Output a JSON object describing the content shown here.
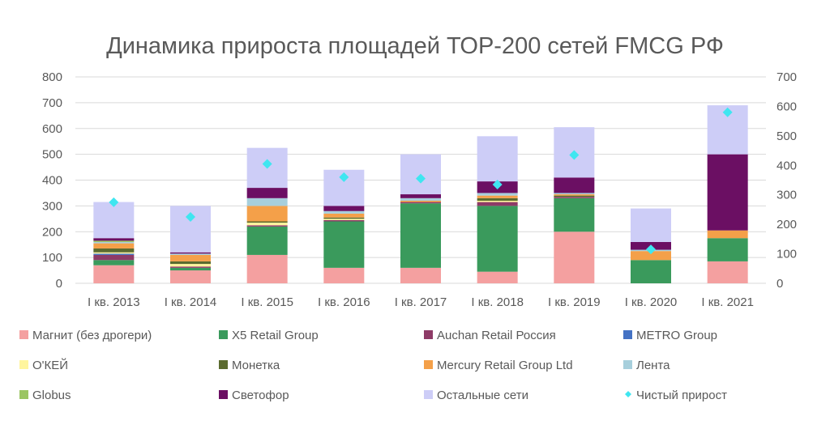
{
  "chart_data": {
    "type": "bar",
    "stacked": true,
    "title": "Динамика прироста площадей ТОР-200 сетей FMCG РФ",
    "categories": [
      "I кв. 2013",
      "I кв. 2014",
      "I кв. 2015",
      "I кв. 2016",
      "I кв. 2017",
      "I кв. 2018",
      "I кв. 2019",
      "I кв. 2020",
      "I кв. 2021"
    ],
    "ylim": [
      0,
      800
    ],
    "yticks": [
      "0",
      "100",
      "200",
      "300",
      "400",
      "500",
      "600",
      "700",
      "800"
    ],
    "y2lim": [
      0,
      700
    ],
    "y2ticks": [
      "0",
      "100",
      "200",
      "300",
      "400",
      "500",
      "600",
      "700"
    ],
    "grid": true,
    "legend_position": "bottom",
    "series": [
      {
        "name": "Магнит (без дрогери)",
        "color": "#f4a0a0",
        "values": [
          70,
          50,
          110,
          60,
          60,
          45,
          200,
          0,
          85
        ]
      },
      {
        "name": "X5 Retail Group",
        "color": "#3a9a5c",
        "values": [
          20,
          10,
          110,
          180,
          250,
          255,
          130,
          90,
          90
        ]
      },
      {
        "name": "Auchan Retail Россия",
        "color": "#8e3b67",
        "values": [
          20,
          5,
          5,
          5,
          5,
          15,
          5,
          0,
          0
        ]
      },
      {
        "name": "METRO Group",
        "color": "#4472c4",
        "values": [
          5,
          0,
          0,
          0,
          0,
          0,
          0,
          0,
          0
        ]
      },
      {
        "name": "О'КЕЙ",
        "color": "#fff59d",
        "values": [
          5,
          10,
          10,
          5,
          0,
          5,
          0,
          0,
          0
        ]
      },
      {
        "name": "Монетка",
        "color": "#5b6b2f",
        "values": [
          15,
          10,
          5,
          5,
          0,
          10,
          5,
          0,
          0
        ]
      },
      {
        "name": "Mercury Retail Group Ltd",
        "color": "#f4a049",
        "values": [
          20,
          25,
          60,
          15,
          5,
          10,
          5,
          35,
          30
        ]
      },
      {
        "name": "Лента",
        "color": "#a7cfdc",
        "values": [
          5,
          5,
          30,
          10,
          10,
          10,
          5,
          5,
          0
        ]
      },
      {
        "name": "Globus",
        "color": "#9bc563",
        "values": [
          5,
          0,
          0,
          0,
          0,
          0,
          0,
          0,
          0
        ]
      },
      {
        "name": "Светофор",
        "color": "#6b0f63",
        "values": [
          10,
          5,
          40,
          20,
          15,
          45,
          60,
          30,
          295
        ]
      },
      {
        "name": "Остальные сети",
        "color": "#cdcdf7",
        "values": [
          140,
          180,
          155,
          140,
          155,
          175,
          195,
          130,
          190
        ]
      }
    ],
    "line_series": {
      "name": "Чистый прирост",
      "axis": "secondary",
      "color": "#3fe6f0",
      "values": [
        275,
        225,
        405,
        360,
        355,
        335,
        435,
        115,
        580
      ]
    }
  }
}
